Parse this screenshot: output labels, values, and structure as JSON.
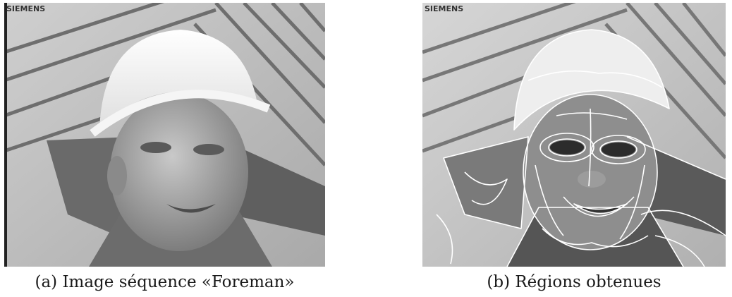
{
  "figure": {
    "panel_a": {
      "logo": "SIEMENS",
      "caption": "(a) Image séquence «Foreman»"
    },
    "panel_b": {
      "logo": "SIEMENS",
      "caption": "(b) Régions obtenues"
    }
  }
}
